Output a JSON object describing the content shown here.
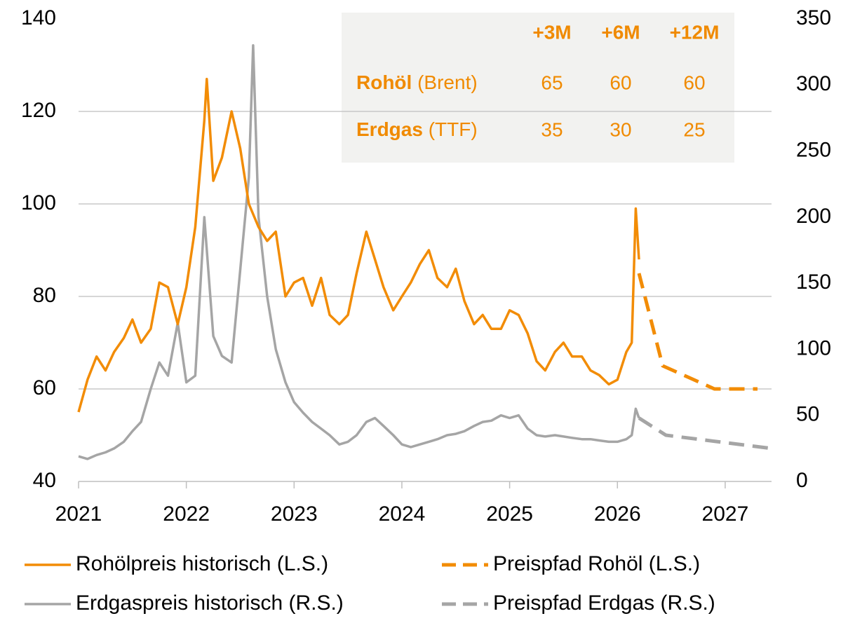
{
  "chart_data": {
    "type": "line",
    "xlim": [
      2021,
      2027.43
    ],
    "xticks": [
      2021,
      2022,
      2023,
      2024,
      2025,
      2026,
      2027
    ],
    "ylim": [
      40,
      140
    ],
    "yticks": [
      40,
      60,
      80,
      100,
      120,
      140
    ],
    "y2lim": [
      0,
      350
    ],
    "y2ticks": [
      0,
      50,
      100,
      150,
      200,
      250,
      300,
      350
    ],
    "grid": true,
    "series": [
      {
        "name": "Rohölpreis historisch (L.S.)",
        "color": "#f28c06",
        "line_style": "solid",
        "x": [
          2021.0,
          2021.083,
          2021.167,
          2021.25,
          2021.33,
          2021.42,
          2021.5,
          2021.58,
          2021.67,
          2021.75,
          2021.83,
          2021.92,
          2022.0,
          2022.083,
          2022.167,
          2022.19,
          2022.25,
          2022.33,
          2022.42,
          2022.5,
          2022.58,
          2022.67,
          2022.75,
          2022.83,
          2022.92,
          2023.0,
          2023.083,
          2023.167,
          2023.25,
          2023.33,
          2023.42,
          2023.5,
          2023.58,
          2023.67,
          2023.75,
          2023.83,
          2023.92,
          2024.0,
          2024.083,
          2024.167,
          2024.25,
          2024.33,
          2024.42,
          2024.5,
          2024.58,
          2024.67,
          2024.75,
          2024.83,
          2024.92,
          2025.0,
          2025.083,
          2025.167,
          2025.25,
          2025.33,
          2025.42,
          2025.5,
          2025.58,
          2025.67,
          2025.75,
          2025.83,
          2025.92,
          2026.0,
          2026.083,
          2026.133,
          2026.17,
          2026.2
        ],
        "values": [
          55,
          62,
          67,
          64,
          68,
          71,
          75,
          70,
          73,
          83,
          82,
          74,
          82,
          95,
          118,
          127,
          105,
          110,
          120,
          112,
          100,
          95,
          92,
          94,
          80,
          83,
          84,
          78,
          84,
          76,
          74,
          76,
          85,
          94,
          88,
          82,
          77,
          80,
          83,
          87,
          90,
          84,
          82,
          86,
          79,
          74,
          76,
          73,
          73,
          77,
          76,
          72,
          66,
          64,
          68,
          70,
          67,
          67,
          64,
          63,
          61,
          62,
          68,
          70,
          99,
          88
        ]
      },
      {
        "name": "Preispfad Rohöl (L.S.)",
        "color": "#f28c06",
        "line_style": "dashed",
        "x": [
          2026.2,
          2026.42,
          2026.9,
          2027.3
        ],
        "values": [
          85,
          65,
          60,
          60
        ]
      },
      {
        "name": "Erdgaspreis historisch (R.S.)",
        "color": "#a5a5a5",
        "line_style": "solid",
        "axis": "y2",
        "x": [
          2021.0,
          2021.083,
          2021.167,
          2021.25,
          2021.33,
          2021.42,
          2021.5,
          2021.58,
          2021.67,
          2021.75,
          2021.83,
          2021.92,
          2022.0,
          2022.083,
          2022.167,
          2022.25,
          2022.33,
          2022.42,
          2022.5,
          2022.58,
          2022.62,
          2022.67,
          2022.75,
          2022.83,
          2022.92,
          2023.0,
          2023.083,
          2023.167,
          2023.25,
          2023.33,
          2023.42,
          2023.5,
          2023.58,
          2023.67,
          2023.75,
          2023.83,
          2023.92,
          2024.0,
          2024.083,
          2024.167,
          2024.25,
          2024.33,
          2024.42,
          2024.5,
          2024.58,
          2024.67,
          2024.75,
          2024.83,
          2024.92,
          2025.0,
          2025.083,
          2025.167,
          2025.25,
          2025.33,
          2025.42,
          2025.5,
          2025.58,
          2025.67,
          2025.75,
          2025.83,
          2025.92,
          2026.0,
          2026.083,
          2026.133,
          2026.17,
          2026.2
        ],
        "values": [
          19,
          17,
          20,
          22,
          25,
          30,
          38,
          45,
          70,
          90,
          80,
          120,
          75,
          80,
          200,
          110,
          95,
          90,
          160,
          230,
          330,
          200,
          140,
          100,
          75,
          60,
          52,
          45,
          40,
          35,
          28,
          30,
          35,
          45,
          48,
          42,
          35,
          28,
          26,
          28,
          30,
          32,
          35,
          36,
          38,
          42,
          45,
          46,
          50,
          48,
          50,
          40,
          35,
          34,
          35,
          34,
          33,
          32,
          32,
          31,
          30,
          30,
          32,
          35,
          55,
          48
        ]
      },
      {
        "name": "Preispfad Erdgas (R.S.)",
        "color": "#a5a5a5",
        "line_style": "dashed",
        "axis": "y2",
        "x": [
          2026.2,
          2026.45,
          2027.43
        ],
        "values": [
          48,
          35,
          25
        ]
      }
    ]
  },
  "table": {
    "header": [
      "+3M",
      "+6M",
      "+12M"
    ],
    "rows": [
      {
        "name": "Rohöl",
        "detail": "(Brent)",
        "cells": [
          "65",
          "60",
          "60"
        ]
      },
      {
        "name": "Erdgas",
        "detail": "(TTF)",
        "cells": [
          "35",
          "30",
          "25"
        ]
      }
    ]
  }
}
